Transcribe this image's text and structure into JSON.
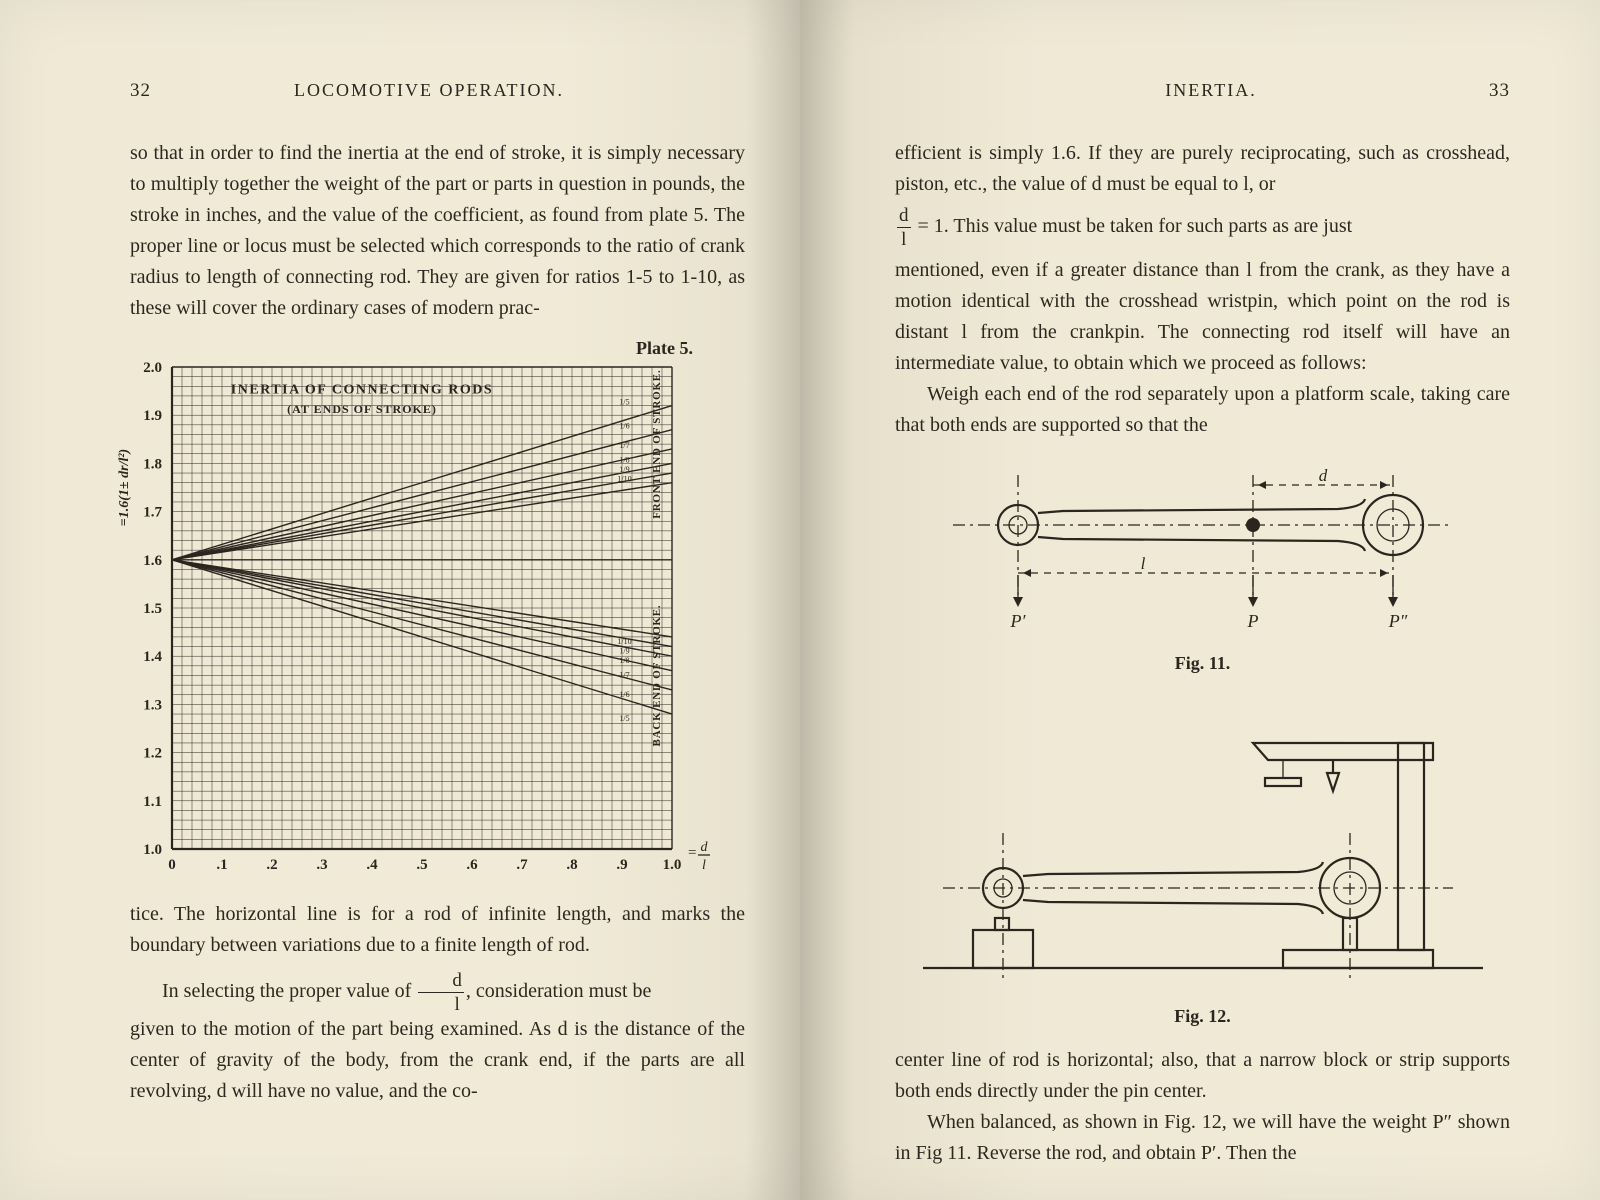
{
  "left": {
    "page_number": "32",
    "running_title": "LOCOMOTIVE OPERATION.",
    "para1": "so that in order to find the inertia at the end of stroke, it is simply necessary to multiply together the weight of the part or parts in question in pounds, the stroke in inches, and the value of the coefficient, as found from plate 5. The proper line or locus must be selected which corresponds to the ratio of crank radius to length of connecting rod. They are given for ratios 1-5 to 1-10, as these will cover the ordinary cases of modern prac-",
    "plate_label": "Plate 5.",
    "chart": {
      "title_line1": "INERTIA OF CONNECTING RODS",
      "title_line2": "(AT ENDS OF STROKE)",
      "y_ticks": [
        "1.0",
        "1.1",
        "1.2",
        "1.3",
        "1.4",
        "1.5",
        "1.6",
        "1.7",
        "1.8",
        "1.9",
        "2.0"
      ],
      "x_ticks": [
        "0",
        ".1",
        ".2",
        ".3",
        ".4",
        ".5",
        ".6",
        ".7",
        ".8",
        ".9",
        "1.0"
      ],
      "x_axis_label_num": "d",
      "x_axis_label_den": "l",
      "y_axis_formula": "=1.6(1± dr/l²)",
      "front_label": "FRONT END OF STROKE.",
      "back_label": "BACK END OF STROKE.",
      "upper_end_y": [
        1.76,
        1.78,
        1.8,
        1.83,
        1.87,
        1.92
      ],
      "lower_end_y": [
        1.44,
        1.42,
        1.4,
        1.37,
        1.33,
        1.28
      ],
      "ratio_labels": [
        "1/10",
        "1/9",
        "1/8",
        "1/7",
        "1/6",
        "1/5"
      ],
      "background": "#eee8d5",
      "grid_color": "#2a261f"
    },
    "para2": "tice. The horizontal line is for a rod of infinite length, and marks the boundary between variations due to a finite length of rod.",
    "para3_pre": "In selecting the proper value of ",
    "para3_frac_num": "d",
    "para3_frac_den": "l",
    "para3_post": ", consideration must be",
    "para4": "given to the motion of the part being examined. As d is the distance of the center of gravity of the body, from the crank end, if the parts are all revolving, d will have no value, and the co-"
  },
  "right": {
    "page_number": "33",
    "running_title": "INERTIA.",
    "para1": "efficient is simply 1.6. If they are purely reciprocating, such as crosshead, piston, etc., the value of d must be equal to l, or",
    "frac_num": "d",
    "frac_den": "l",
    "para2_inline": " = 1.  This value must be taken for such parts as are just",
    "para3": "mentioned, even if a greater distance than l from the crank, as they have a motion identical with the crosshead wristpin, which point on the rod is distant l from the crankpin. The connecting rod itself will have an intermediate value, to obtain which we proceed as follows:",
    "para4": "Weigh each end of the rod separately upon a platform scale, taking care that both ends are supported so that the",
    "fig11_caption": "Fig. 11.",
    "fig11": {
      "labels": {
        "d": "d",
        "l": "l",
        "Pprime": "P′",
        "P": "P",
        "Pdprime": "P″"
      }
    },
    "fig12_caption": "Fig. 12.",
    "para5": "center line of rod is horizontal; also, that a narrow block or strip supports both ends directly under the pin center.",
    "para6": "When balanced, as shown in Fig. 12, we will have the weight P″ shown in Fig 11. Reverse the rod, and obtain P′. Then the"
  }
}
